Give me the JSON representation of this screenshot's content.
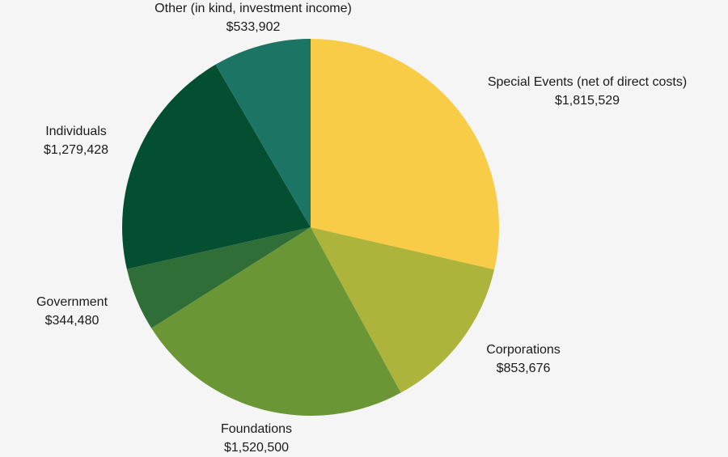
{
  "chart_data": {
    "type": "pie",
    "title": "",
    "start_angle_deg": 0,
    "direction": "clockwise",
    "slices": [
      {
        "label": "Special Events (net of direct costs)",
        "value": 1815529,
        "value_label": "$1,815,529",
        "color": "#f8cc46"
      },
      {
        "label": "Corporations",
        "value": 853676,
        "value_label": "$853,676",
        "color": "#adb43b"
      },
      {
        "label": "Foundations",
        "value": 1520500,
        "value_label": "$1,520,500",
        "color": "#6b9635"
      },
      {
        "label": "Government",
        "value": 344480,
        "value_label": "$344,480",
        "color": "#306e38"
      },
      {
        "label": "Individuals",
        "value": 1279428,
        "value_label": "$1,279,428",
        "color": "#044f31"
      },
      {
        "label": "Other (in kind, investment income)",
        "value": 533902,
        "value_label": "$533,902",
        "color": "#1b7464"
      }
    ]
  },
  "colors": {
    "background": "#f5f5f5",
    "text": "#1a1a1a"
  }
}
